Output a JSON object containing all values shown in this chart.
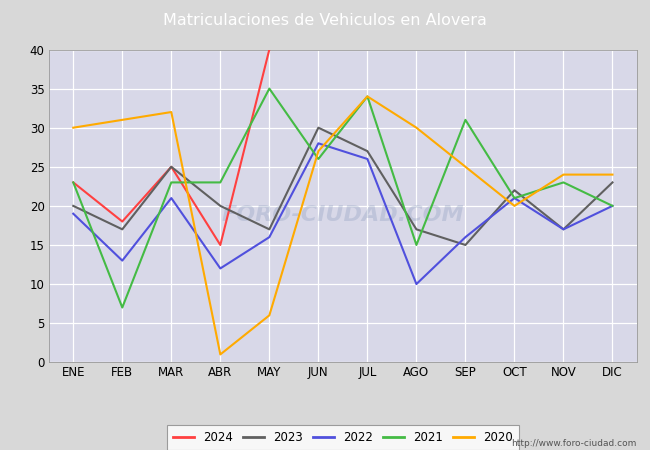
{
  "title": "Matriculaciones de Vehiculos en Alovera",
  "header_bg": "#4d7ebf",
  "months": [
    "ENE",
    "FEB",
    "MAR",
    "ABR",
    "MAY",
    "JUN",
    "JUL",
    "AGO",
    "SEP",
    "OCT",
    "NOV",
    "DIC"
  ],
  "series": {
    "2024": {
      "color": "#ff4040",
      "data": [
        23,
        18,
        25,
        15,
        40,
        null,
        null,
        null,
        null,
        null,
        null,
        null
      ]
    },
    "2023": {
      "color": "#606060",
      "data": [
        20,
        17,
        25,
        20,
        17,
        30,
        27,
        17,
        15,
        22,
        17,
        23
      ]
    },
    "2022": {
      "color": "#5050dd",
      "data": [
        19,
        13,
        21,
        12,
        16,
        28,
        26,
        10,
        16,
        21,
        17,
        20
      ]
    },
    "2021": {
      "color": "#44bb44",
      "data": [
        23,
        7,
        23,
        23,
        35,
        26,
        34,
        15,
        31,
        21,
        23,
        20
      ]
    },
    "2020": {
      "color": "#ffaa00",
      "data": [
        30,
        31,
        32,
        1,
        6,
        27,
        34,
        30,
        25,
        20,
        24,
        24
      ]
    }
  },
  "ylim": [
    0,
    40
  ],
  "yticks": [
    0,
    5,
    10,
    15,
    20,
    25,
    30,
    35,
    40
  ],
  "outer_bg": "#d8d8d8",
  "plot_bg": "#d8d8e8",
  "grid_color": "#ffffff",
  "footer_text": "http://www.foro-ciudad.com",
  "legend_order": [
    "2024",
    "2023",
    "2022",
    "2021",
    "2020"
  ],
  "watermark": "FORO-CIUDAD.COM"
}
